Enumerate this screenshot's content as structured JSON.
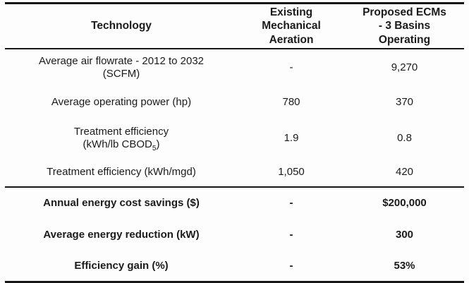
{
  "table": {
    "header": {
      "technology": "Technology",
      "existing": "Existing\nMechanical\nAeration",
      "proposed": "Proposed ECMs\n- 3 Basins\nOperating"
    },
    "rows": [
      {
        "label": "Average air flowrate - 2012 to 2032\n(SCFM)",
        "existing": "-",
        "proposed": "9,270"
      },
      {
        "label": "Average operating power (hp)",
        "existing": "780",
        "proposed": "370"
      },
      {
        "label": "Treatment efficiency\n(kWh/lb CBOD",
        "label_sub": "5",
        "label_end": ")",
        "existing": "1.9",
        "proposed": "0.8"
      },
      {
        "label": "Treatment efficiency (kWh/mgd)",
        "existing": "1,050",
        "proposed": "420"
      }
    ],
    "summary_rows": [
      {
        "label": "Annual energy cost savings ($)",
        "existing": "-",
        "proposed": "$200,000"
      },
      {
        "label": "Average energy reduction (kW)",
        "existing": "-",
        "proposed": "300"
      },
      {
        "label": "Efficiency gain (%)",
        "existing": "-",
        "proposed": "53%"
      }
    ]
  },
  "colors": {
    "text": "#1b1b1b",
    "rule": "#161616",
    "background": "#fdfdfd"
  }
}
